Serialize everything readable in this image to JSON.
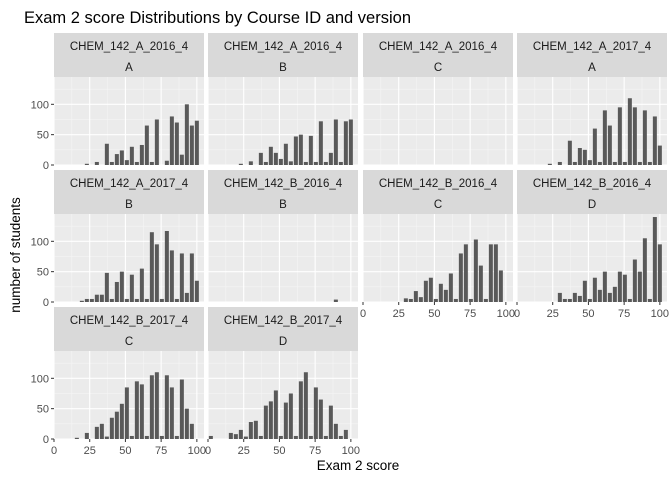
{
  "chart_data": {
    "type": "bar",
    "title": "Exam 2 score Distributions by Course ID and version",
    "xlabel": "Exam 2 score",
    "ylabel": "number of students",
    "xlim": [
      0,
      105
    ],
    "ylim": [
      0,
      145
    ],
    "x_ticks": [
      0,
      25,
      50,
      75,
      100
    ],
    "y_ticks": [
      0,
      50,
      100
    ],
    "grid": true,
    "bin_width": 3.5,
    "bin_centers": [
      2,
      5.5,
      9,
      12.5,
      16,
      19.5,
      23,
      26.5,
      30,
      33.5,
      37,
      40.5,
      44,
      47.5,
      51,
      54.5,
      58,
      61.5,
      65,
      68.5,
      72,
      75.5,
      79,
      82.5,
      86,
      89.5,
      93,
      96.5,
      100
    ],
    "panels": [
      {
        "course": "CHEM_142_A_2016_4",
        "version": "A",
        "values": [
          0,
          0,
          0,
          0,
          0,
          0,
          2,
          0,
          5,
          0,
          35,
          5,
          18,
          24,
          8,
          30,
          5,
          33,
          65,
          5,
          75,
          0,
          7,
          80,
          70,
          17,
          100,
          65,
          73
        ]
      },
      {
        "course": "CHEM_142_A_2016_4",
        "version": "B",
        "values": [
          0,
          0,
          0,
          0,
          0,
          0,
          2,
          0,
          6,
          0,
          20,
          5,
          30,
          20,
          10,
          35,
          6,
          47,
          50,
          5,
          48,
          5,
          72,
          5,
          20,
          75,
          5,
          72,
          75
        ]
      },
      {
        "course": "CHEM_142_A_2016_4",
        "version": "C",
        "values": [
          0,
          0,
          0,
          0,
          0,
          0,
          0,
          0,
          0,
          0,
          0,
          0,
          0,
          0,
          0,
          0,
          0,
          0,
          0,
          0,
          0,
          0,
          0,
          0,
          0,
          0,
          0,
          0,
          0
        ]
      },
      {
        "course": "CHEM_142_A_2017_4",
        "version": "A",
        "values": [
          0,
          0,
          0,
          0,
          0,
          0,
          2,
          0,
          5,
          0,
          40,
          5,
          28,
          25,
          8,
          60,
          5,
          90,
          65,
          5,
          95,
          5,
          110,
          95,
          5,
          90,
          5,
          80,
          32
        ]
      },
      {
        "course": "CHEM_142_A_2017_4",
        "version": "B",
        "values": [
          0,
          0,
          0,
          0,
          0,
          2,
          5,
          5,
          12,
          12,
          48,
          5,
          33,
          50,
          5,
          45,
          5,
          55,
          5,
          115,
          95,
          5,
          117,
          85,
          5,
          80,
          15,
          80,
          35
        ]
      },
      {
        "course": "CHEM_142_B_2016_4",
        "version": "B",
        "values": [
          0,
          0,
          0,
          0,
          0,
          0,
          0,
          0,
          0,
          0,
          0,
          0,
          0,
          0,
          0,
          0,
          0,
          0,
          0,
          0,
          0,
          0,
          0,
          0,
          0,
          4,
          0,
          0,
          0
        ]
      },
      {
        "course": "CHEM_142_B_2016_4",
        "version": "C",
        "values": [
          0,
          0,
          0,
          0,
          0,
          0,
          0,
          0,
          6,
          5,
          18,
          8,
          35,
          40,
          5,
          30,
          20,
          47,
          5,
          80,
          95,
          5,
          103,
          60,
          5,
          95,
          95,
          52,
          0
        ]
      },
      {
        "course": "CHEM_142_B_2016_4",
        "version": "D",
        "values": [
          0,
          0,
          0,
          0,
          0,
          0,
          0,
          0,
          15,
          5,
          5,
          15,
          10,
          35,
          5,
          40,
          20,
          50,
          15,
          25,
          50,
          45,
          5,
          70,
          50,
          105,
          5,
          140,
          95
        ]
      },
      {
        "course": "CHEM_142_B_2017_4",
        "version": "C",
        "values": [
          0,
          0,
          0,
          0,
          2,
          0,
          10,
          0,
          20,
          25,
          4,
          35,
          45,
          58,
          85,
          5,
          95,
          90,
          5,
          105,
          110,
          5,
          105,
          85,
          5,
          98,
          50,
          25,
          0
        ]
      },
      {
        "course": "CHEM_142_B_2017_4",
        "version": "D",
        "values": [
          5,
          0,
          0,
          0,
          10,
          8,
          15,
          4,
          28,
          30,
          5,
          55,
          62,
          80,
          5,
          60,
          75,
          5,
          95,
          110,
          5,
          85,
          65,
          5,
          55,
          25,
          5,
          15,
          0
        ]
      }
    ]
  }
}
